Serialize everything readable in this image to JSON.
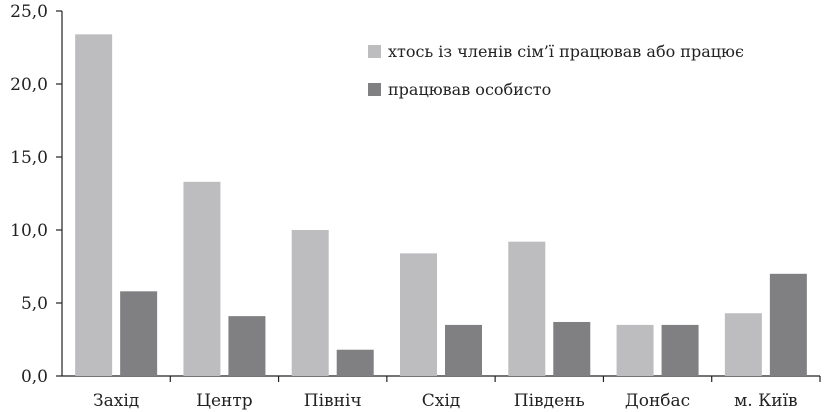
{
  "chart_data": {
    "type": "bar",
    "title": "",
    "xlabel": "",
    "ylabel": "",
    "categories": [
      "Захід",
      "Центр",
      "Північ",
      "Схід",
      "Південь",
      "Донбас",
      "м. Київ"
    ],
    "series": [
      {
        "name": "хтось із членів сім’ї працював або працює",
        "color": "#bdbdbf",
        "values": [
          23.4,
          13.3,
          10.0,
          8.4,
          9.2,
          3.5,
          4.3
        ]
      },
      {
        "name": "працював особисто",
        "color": "#808083",
        "values": [
          5.8,
          4.1,
          1.8,
          3.5,
          3.7,
          3.5,
          7.0
        ]
      }
    ],
    "ylim": [
      0,
      25
    ],
    "yticks": [
      0,
      5,
      10,
      15,
      20,
      25
    ],
    "ytick_labels": [
      "0,0",
      "5,0",
      "10,0",
      "15,0",
      "20,0",
      "25,0"
    ],
    "grid": false,
    "legend_position": "top-right"
  }
}
